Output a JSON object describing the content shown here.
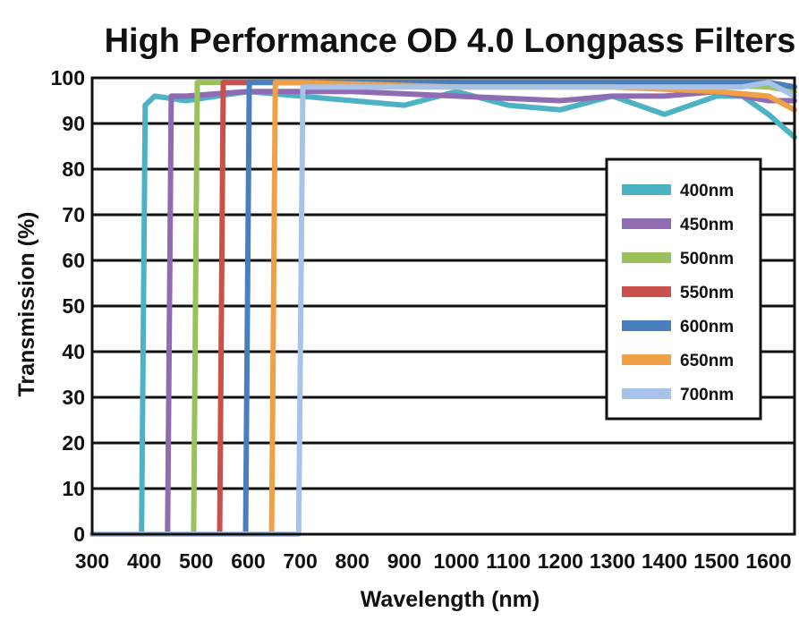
{
  "chart_data": {
    "type": "line",
    "title": "High Performance OD 4.0 Longpass Filters",
    "xlabel": "Wavelength (nm)",
    "ylabel": "Transmission (%)",
    "xlim": [
      300,
      1650
    ],
    "ylim": [
      0,
      100
    ],
    "xticks": [
      300,
      400,
      500,
      600,
      700,
      800,
      900,
      1000,
      1100,
      1200,
      1300,
      1400,
      1500,
      1600
    ],
    "yticks": [
      0,
      10,
      20,
      30,
      40,
      50,
      60,
      70,
      80,
      90,
      100
    ],
    "grid": "horizontal",
    "legend_position": "right",
    "series": [
      {
        "name": "400nm",
        "color": "#4db3c4",
        "x": [
          300,
          395,
          402,
          420,
          480,
          600,
          800,
          900,
          1000,
          1100,
          1200,
          1300,
          1400,
          1500,
          1550,
          1600,
          1650
        ],
        "y": [
          0,
          0,
          94,
          96,
          95,
          97,
          95,
          94,
          97,
          94,
          93,
          96,
          92,
          96,
          96,
          92,
          87
        ]
      },
      {
        "name": "450nm",
        "color": "#8f6bb3",
        "x": [
          300,
          445,
          452,
          480,
          600,
          800,
          1000,
          1200,
          1300,
          1400,
          1500,
          1600,
          1650
        ],
        "y": [
          0,
          0,
          96,
          96,
          97,
          97,
          96,
          95,
          96,
          96,
          97,
          95,
          95
        ]
      },
      {
        "name": "500nm",
        "color": "#9bc25a",
        "x": [
          300,
          495,
          502,
          600,
          800,
          1000,
          1200,
          1400,
          1600,
          1650
        ],
        "y": [
          0,
          0,
          99,
          99,
          99,
          99,
          99,
          99,
          98,
          97
        ]
      },
      {
        "name": "550nm",
        "color": "#c9504b",
        "x": [
          300,
          545,
          552,
          700,
          1000,
          1300,
          1600,
          1650
        ],
        "y": [
          0,
          0,
          99,
          99,
          99,
          99,
          99,
          98
        ]
      },
      {
        "name": "600nm",
        "color": "#4a7fbd",
        "x": [
          300,
          595,
          602,
          700,
          1000,
          1300,
          1600,
          1650
        ],
        "y": [
          0,
          0,
          99,
          99,
          99,
          99,
          99,
          98
        ]
      },
      {
        "name": "650nm",
        "color": "#f0a045",
        "x": [
          300,
          645,
          652,
          700,
          1000,
          1300,
          1500,
          1600,
          1650
        ],
        "y": [
          0,
          0,
          99,
          99,
          98,
          98,
          97,
          96,
          93
        ]
      },
      {
        "name": "700nm",
        "color": "#a7c3e8",
        "x": [
          300,
          697,
          705,
          800,
          1000,
          1200,
          1400,
          1550,
          1600,
          1650
        ],
        "y": [
          0,
          0,
          98,
          98,
          98,
          98,
          98,
          98,
          99,
          96
        ]
      }
    ]
  }
}
